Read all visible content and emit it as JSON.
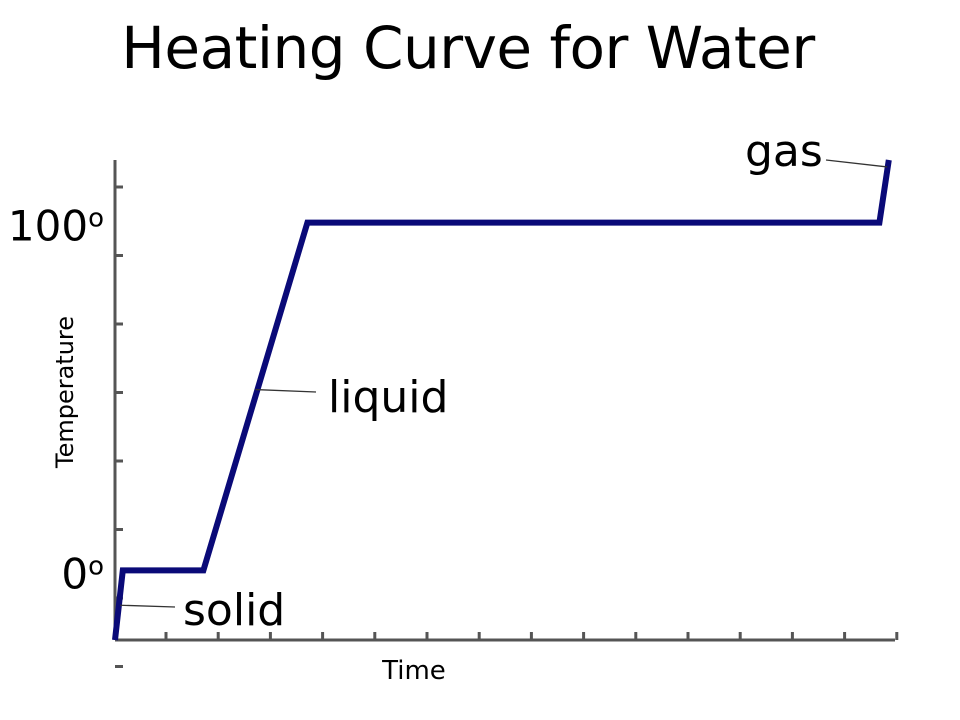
{
  "title": "Heating Curve for Water",
  "chart_data": {
    "type": "line",
    "title": "Heating Curve for Water",
    "xlabel": "Time",
    "ylabel": "Temperature",
    "y_tick_labels": [
      {
        "value": 100,
        "label": "100",
        "superscript": "o"
      },
      {
        "value": 0,
        "label": "0",
        "superscript": "o"
      }
    ],
    "ylim": [
      -20,
      118
    ],
    "xlim": [
      0,
      15
    ],
    "line_color": "#0a0a78",
    "series": [
      {
        "x": [
          0,
          0.15,
          1.7,
          3.7,
          14.7,
          14.88
        ],
        "y": [
          -20,
          0,
          0,
          100,
          100,
          118
        ]
      }
    ],
    "annotations": [
      {
        "text": "solid",
        "x": 0.1,
        "y": -10
      },
      {
        "text": "liquid",
        "x": 2.7,
        "y": 52
      },
      {
        "text": "gas",
        "x": 14.85,
        "y": 116
      }
    ]
  }
}
